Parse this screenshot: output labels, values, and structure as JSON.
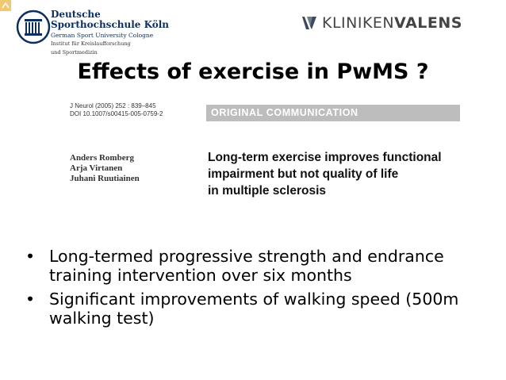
{
  "header": {
    "left_logo": {
      "name_line1": "Deutsche",
      "name_line2": "Sporthochschule Köln",
      "sub": "German Sport University Cologne",
      "institute_line1": "Institut für Kreislaufforschung",
      "institute_line2": "und Sportmedizin",
      "icon": "university-columns-icon"
    },
    "right_logo": {
      "part1": "KLINIKEN",
      "part2": "VALENS",
      "icon": "valens-v-mark-icon"
    },
    "corner_icon": "corner-badge-icon"
  },
  "slide": {
    "title": "Effects of exercise in PwMS ?",
    "article": {
      "ref_line1": "J Neurol (2005) 252 : 839–845",
      "ref_line2": "DOI 10.1007/s00415-005-0759-2",
      "section": "ORIGINAL COMMUNICATION",
      "authors": [
        "Anders Romberg",
        "Arja Virtanen",
        "Juhani Ruutiainen"
      ],
      "title_lines": [
        "Long-term exercise improves functional",
        "impairment but not quality of life",
        "in multiple sclerosis"
      ]
    },
    "bullets": [
      "Long-termed progressive strength and endrance training intervention over six months",
      "Significant improvements of walking speed (500m walking test)"
    ]
  },
  "colors": {
    "dshs_blue": "#0d2f5e",
    "valens_gray": "#444444",
    "section_bar": "#bdbdbd",
    "corner": "#f0c870"
  }
}
